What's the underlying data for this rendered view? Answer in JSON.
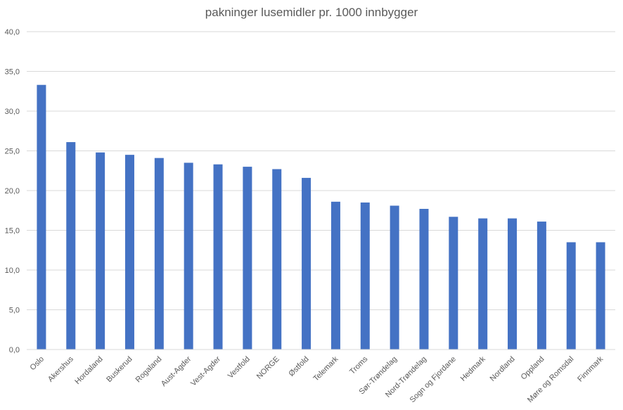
{
  "chart_data": {
    "type": "bar",
    "title": "pakninger lusemidler pr. 1000 innbygger",
    "xlabel": "",
    "ylabel": "",
    "ylim": [
      0,
      40
    ],
    "yticks": [
      "0,0",
      "5,0",
      "10,0",
      "15,0",
      "20,0",
      "25,0",
      "30,0",
      "35,0",
      "40,0"
    ],
    "grid": true,
    "legend": "none",
    "bar_color": "#4472C4",
    "grid_color": "#D9D9D9",
    "categories": [
      "Oslo",
      "Akershus",
      "Hordaland",
      "Buskerud",
      "Rogaland",
      "Aust-Agder",
      "Vest-Agder",
      "Vestfold",
      "NORGE",
      "Østfold",
      "Telemark",
      "Troms",
      "Sør-Trøndelag",
      "Nord-Trøndelag",
      "Sogn og Fjordane",
      "Hedmark",
      "Nordland",
      "Oppland",
      "Møre og Romsdal",
      "Finnmark"
    ],
    "values": [
      33.3,
      26.1,
      24.8,
      24.5,
      24.1,
      23.5,
      23.3,
      23.0,
      22.7,
      21.6,
      18.6,
      18.5,
      18.1,
      17.7,
      16.7,
      16.5,
      16.5,
      16.1,
      13.5,
      13.5
    ]
  }
}
